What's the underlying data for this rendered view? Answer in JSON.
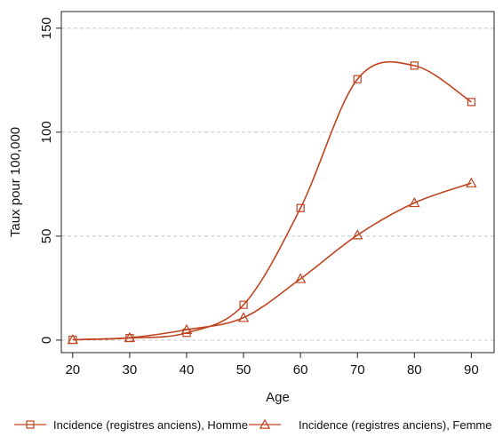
{
  "chart_data": {
    "type": "line",
    "xlabel": "Age",
    "ylabel": "Taux pour 100,000",
    "x": [
      20,
      30,
      40,
      50,
      60,
      70,
      80,
      90
    ],
    "xticks": [
      20,
      30,
      40,
      50,
      60,
      70,
      80,
      90
    ],
    "yticks": [
      0,
      50,
      100,
      150
    ],
    "xlim": [
      18,
      94
    ],
    "ylim": [
      -6,
      158
    ],
    "grid": "horizontal dashed",
    "legend_position": "bottom",
    "line_color": "#c0441f",
    "series": [
      {
        "name": "Incidence (registres anciens), Homme",
        "marker": "square",
        "values": [
          0.2,
          1.0,
          3.5,
          17.0,
          63.5,
          125.5,
          132.0,
          114.5
        ]
      },
      {
        "name": "Incidence (registres anciens), Femme",
        "marker": "triangle",
        "values": [
          0.2,
          1.2,
          5.0,
          10.8,
          29.5,
          50.5,
          66.0,
          75.5
        ]
      }
    ]
  }
}
